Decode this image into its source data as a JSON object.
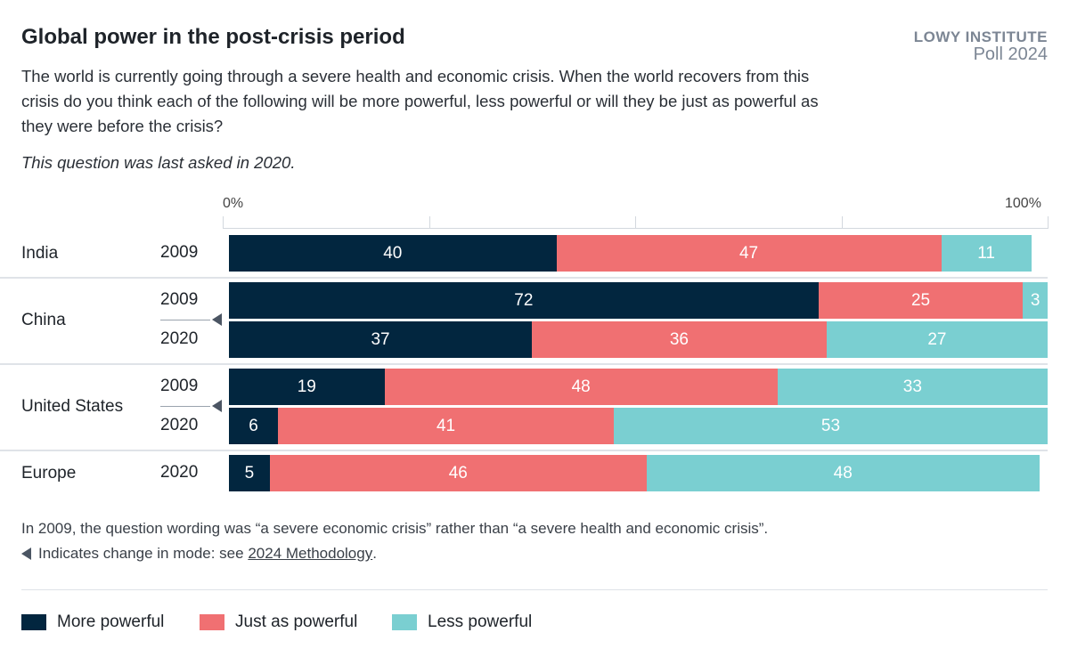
{
  "header": {
    "title": "Global power in the post-crisis period",
    "subtitle": "The world is currently going through a severe health and economic crisis. When the world recovers from this crisis do you think each of the following will be more powerful, less powerful or will they be just as powerful as they were before the crisis?",
    "note": "This question was last asked in 2020.",
    "logo_line1": "LOWY INSTITUTE",
    "logo_line2": "Poll 2024"
  },
  "footer": {
    "line1": "In 2009, the question wording was “a severe economic crisis” rather than “a severe health and economic crisis”.",
    "line2_prefix": "Indicates change in mode: see ",
    "link": "2024 Methodology",
    "line2_suffix": "."
  },
  "colors": {
    "More powerful": "#02263f",
    "Just as powerful": "#f07072",
    "Less powerful": "#7acfd1"
  },
  "chart_data": {
    "type": "bar",
    "orientation": "horizontal",
    "stacked": true,
    "xlim": [
      0,
      100
    ],
    "x_ticks": [
      "0%",
      "",
      "",
      "",
      "100%"
    ],
    "legend_position": "bottom-left",
    "series_names": [
      "More powerful",
      "Just as powerful",
      "Less powerful"
    ],
    "groups": [
      {
        "name": "India",
        "rows": [
          {
            "year": "2009",
            "values": [
              40,
              47,
              11
            ]
          }
        ]
      },
      {
        "name": "China",
        "mode_change": true,
        "rows": [
          {
            "year": "2009",
            "values": [
              72,
              25,
              3
            ]
          },
          {
            "year": "2020",
            "values": [
              37,
              36,
              27
            ]
          }
        ]
      },
      {
        "name": "United States",
        "mode_change": true,
        "rows": [
          {
            "year": "2009",
            "values": [
              19,
              48,
              33
            ]
          },
          {
            "year": "2020",
            "values": [
              6,
              41,
              53
            ]
          }
        ]
      },
      {
        "name": "Europe",
        "rows": [
          {
            "year": "2020",
            "values": [
              5,
              46,
              48
            ]
          }
        ]
      }
    ]
  }
}
